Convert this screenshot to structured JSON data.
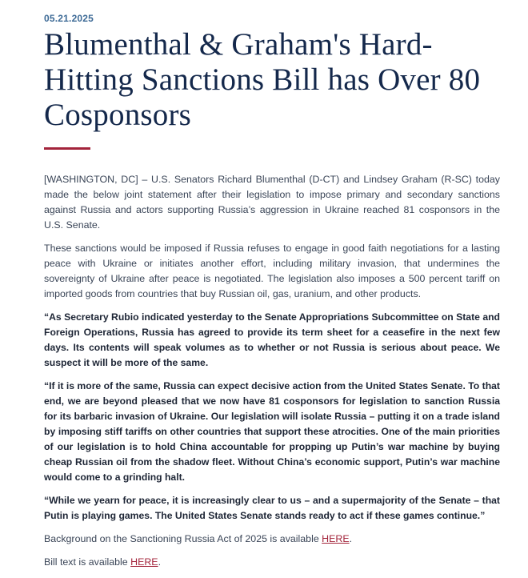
{
  "date": "05.21.2025",
  "title": "Blumenthal & Graham's Hard-Hitting Sanctions Bill has Over 80 Cosponsors",
  "colors": {
    "title": "#14284b",
    "accent": "#a3243b",
    "date": "#3d6a96"
  },
  "paragraphs": [
    "[WASHINGTON, DC] – U.S. Senators Richard Blumenthal (D-CT) and Lindsey Graham (R-SC) today made the below joint statement after their legislation to impose primary and secondary sanctions against Russia and actors supporting Russia’s aggression in Ukraine reached 81 cosponsors in the U.S. Senate.",
    "These sanctions would be imposed if Russia refuses to engage in good faith negotiations for a lasting peace with Ukraine or initiates another effort, including military invasion, that undermines the sovereignty of Ukraine after peace is negotiated. The legislation also imposes a 500 percent tariff on imported goods from countries that buy Russian oil, gas, uranium, and other products."
  ],
  "quotes": [
    "“As Secretary Rubio indicated yesterday to the Senate Appropriations Subcommittee on State and Foreign Operations, Russia has agreed to provide its term sheet for a ceasefire in the next few days. Its contents will speak volumes as to whether or not Russia is serious about peace. We suspect it will be more of the same.",
    "“If it is more of the same, Russia can expect decisive action from the United States Senate. To that end, we are beyond pleased that we now have 81 cosponsors for legislation to sanction Russia for its barbaric invasion of Ukraine. Our legislation will isolate Russia – putting it on a trade island by imposing stiff tariffs on other countries that support these atrocities. One of the main priorities of our legislation is to hold China accountable for propping up Putin’s war machine by buying cheap Russian oil from the shadow fleet. Without China’s economic support, Putin’s war machine would come to a grinding halt.",
    "“While we yearn for peace, it is increasingly clear to us – and a supermajority of the Senate – that Putin is playing games. The United States Senate stands ready to act if these games continue.”"
  ],
  "background": {
    "text": "Background on the Sanctioning Russia Act of 2025 is available ",
    "link": "HERE",
    "end": "."
  },
  "bill_text": {
    "text": "Bill text is available ",
    "link": "HERE",
    "end": "."
  }
}
